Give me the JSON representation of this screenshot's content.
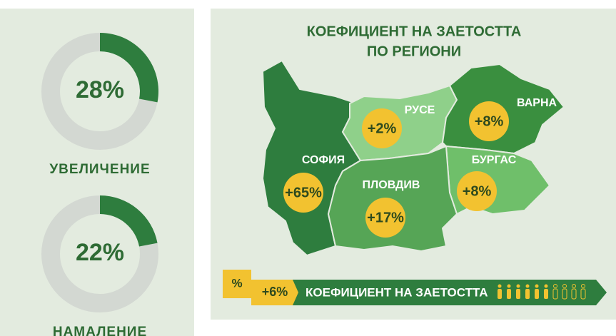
{
  "chart_data": [
    {
      "type": "donut",
      "values": [
        28
      ],
      "value_labels": [
        "28%"
      ],
      "title": "УВЕЛИЧЕНИЕ",
      "color": "#2e7d3e"
    },
    {
      "type": "donut",
      "values": [
        22
      ],
      "value_labels": [
        "22%"
      ],
      "title": "НАМАЛЕНИЕ",
      "color": "#2e7d3e"
    }
  ],
  "map": {
    "title_lines": [
      "КОЕФИЦИЕНТ НА ЗАЕТОСТТА",
      "ПО РЕГИОНИ"
    ],
    "regions": [
      {
        "name": "СОФИЯ",
        "change": "+65%"
      },
      {
        "name": "РУСЕ",
        "change": "+2%"
      },
      {
        "name": "ВАРНА",
        "change": "+8%"
      },
      {
        "name": "БУРГАС",
        "change": "+8%"
      },
      {
        "name": "ПЛОВДИВ",
        "change": "+17%"
      }
    ],
    "legend": {
      "symbol": "%",
      "change": "+6%",
      "label": "КОЕФИЦИЕНТ НА ЗАЕТОСТТА"
    }
  }
}
